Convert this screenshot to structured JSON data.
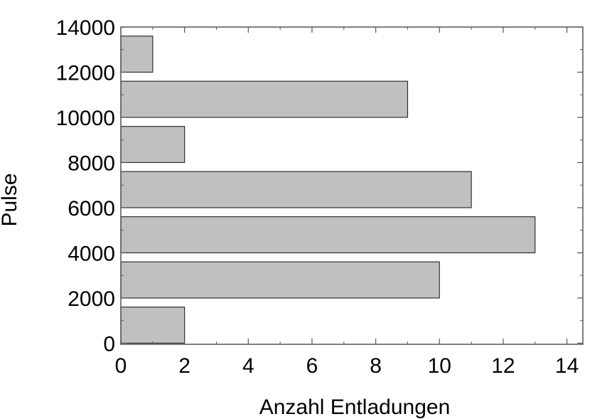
{
  "chart_data": {
    "type": "bar",
    "orientation": "horizontal",
    "title": "",
    "xlabel": "Anzahl Entladungen",
    "ylabel": "Pulse",
    "xlim": [
      0,
      14.5
    ],
    "ylim": [
      -50,
      14000
    ],
    "x_ticks": [
      0,
      2,
      4,
      6,
      8,
      10,
      12,
      14
    ],
    "y_ticks": [
      0,
      2000,
      4000,
      6000,
      8000,
      10000,
      12000,
      14000
    ],
    "bins": [
      {
        "from": 0,
        "to": 1600,
        "value": 2
      },
      {
        "from": 2000,
        "to": 3600,
        "value": 10
      },
      {
        "from": 4000,
        "to": 5600,
        "value": 13
      },
      {
        "from": 6000,
        "to": 7600,
        "value": 11
      },
      {
        "from": 8000,
        "to": 9600,
        "value": 2
      },
      {
        "from": 10000,
        "to": 11600,
        "value": 9
      },
      {
        "from": 12000,
        "to": 13600,
        "value": 1
      }
    ],
    "grid": false,
    "legend": "none",
    "colors": {
      "bar_fill": "#c0c0c0",
      "bar_stroke": "#303030",
      "axis": "#555555"
    }
  }
}
